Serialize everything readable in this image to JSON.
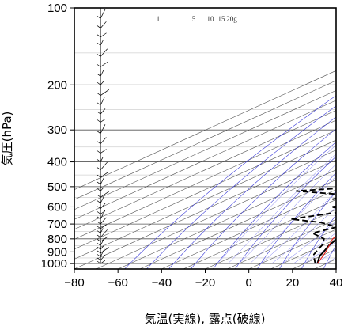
{
  "chart_data": {
    "type": "line",
    "xlabel": "気温(実線), 露点(破線)",
    "ylabel": "気圧(hPa)",
    "x_ticks": [
      -80,
      -60,
      -40,
      -20,
      0,
      20,
      40
    ],
    "y_ticks": [
      100,
      200,
      300,
      400,
      500,
      600,
      700,
      800,
      900,
      1000
    ],
    "xlim": [
      -80,
      40
    ],
    "ylim": [
      1050,
      100
    ],
    "y_scale": "log",
    "mixing_ratio_labels": [
      "1",
      "5",
      "10",
      "15",
      "20g"
    ],
    "colors": {
      "temperature": "#000000",
      "dewpoint": "#000000",
      "parcel": "#e8201a",
      "isotherms": "#555555",
      "dry_adiabats": "#3a3ad8",
      "moist_adiabats": "#6b6bf0",
      "wind_barbs": "#000000"
    },
    "series": [
      {
        "name": "",
        "style": "solid",
        "points": [
          [
            26,
            1000
          ],
          [
            22,
            960
          ],
          [
            19,
            930
          ],
          [
            17,
            900
          ],
          [
            13,
            850
          ],
          [
            10,
            800
          ],
          [
            6,
            750
          ],
          [
            3,
            700
          ],
          [
            0,
            650
          ],
          [
            -3,
            600
          ],
          [
            -6.5,
            550
          ],
          [
            -10,
            500
          ],
          [
            -14,
            450
          ],
          [
            -18,
            400
          ],
          [
            -22.5,
            350
          ],
          [
            -29,
            300
          ],
          [
            -35,
            265
          ],
          [
            -40,
            240
          ],
          [
            -46,
            215
          ],
          [
            -53,
            190
          ],
          [
            -59,
            170
          ],
          [
            -63,
            150
          ],
          [
            -65,
            130
          ],
          [
            -66,
            120
          ],
          [
            -66,
            110
          ],
          [
            -67,
            100
          ]
        ]
      },
      {
        "name": "",
        "style": "dashed",
        "points": [
          [
            25,
            1000
          ],
          [
            20,
            960
          ],
          [
            15,
            920
          ],
          [
            12,
            880
          ],
          [
            9,
            840
          ],
          [
            4,
            800
          ],
          [
            -7,
            760
          ],
          [
            -2,
            720
          ],
          [
            -14,
            690
          ],
          [
            -31,
            670
          ],
          [
            -20,
            640
          ],
          [
            -11,
            620
          ],
          [
            -25,
            600
          ],
          [
            -14,
            580
          ],
          [
            -32,
            560
          ],
          [
            -28,
            540
          ],
          [
            -57,
            520
          ],
          [
            -37,
            505
          ],
          [
            -30,
            480
          ],
          [
            -22,
            460
          ],
          [
            -30,
            440
          ],
          [
            -20,
            410
          ],
          [
            -27,
            385
          ],
          [
            -34,
            365
          ],
          [
            -38,
            345
          ],
          [
            -54,
            325
          ],
          [
            -46,
            305
          ],
          [
            -47,
            290
          ],
          [
            -60,
            275
          ],
          [
            -78,
            265
          ],
          [
            -64,
            263
          ]
        ]
      },
      {
        "name": "",
        "style": "solid-red",
        "points": [
          [
            26,
            1000
          ],
          [
            18,
            900
          ],
          [
            8,
            800
          ],
          [
            2,
            700
          ],
          [
            -5,
            600
          ],
          [
            -13,
            500
          ],
          [
            -23,
            400
          ],
          [
            -35,
            300
          ],
          [
            -50,
            230
          ],
          [
            -65,
            175
          ],
          [
            -82,
            140
          ]
        ]
      }
    ],
    "wind_barb_x": -68,
    "wind_barb_levels": [
      1000,
      970,
      940,
      910,
      880,
      850,
      820,
      790,
      760,
      730,
      700,
      670,
      640,
      610,
      580,
      550,
      520,
      490,
      460,
      430,
      400,
      370,
      340,
      310,
      280,
      260,
      240,
      220,
      200,
      185,
      170,
      155,
      140,
      130,
      120,
      110,
      100
    ]
  }
}
